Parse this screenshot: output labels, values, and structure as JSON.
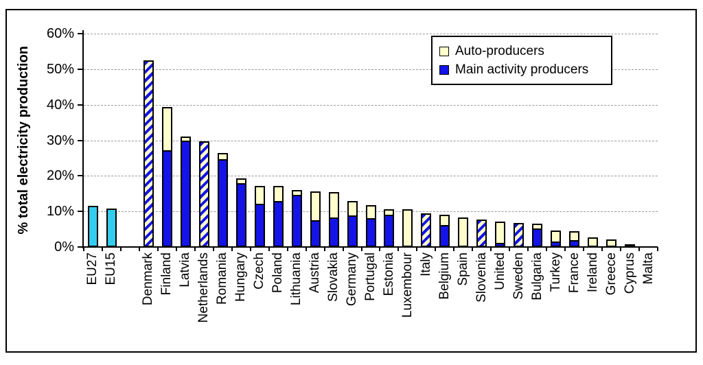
{
  "chart": {
    "ylabel": "% total electricity production",
    "legend": {
      "auto": {
        "label": "Auto-producers",
        "color": "#FFFFCC"
      },
      "main": {
        "label": "Main activity producers",
        "color": "#1414E8"
      }
    }
  },
  "chart_data": {
    "type": "bar",
    "stacked": true,
    "title": "",
    "xlabel": "",
    "ylabel": "% total electricity production",
    "ylim": [
      0,
      60
    ],
    "ytick_step": 10,
    "ytick_labels": [
      "0%",
      "10%",
      "20%",
      "30%",
      "40%",
      "50%",
      "60%"
    ],
    "grid": "horizontal-dashed",
    "legend_position": "top-right",
    "gap_after_index": 1,
    "colors": {
      "main": "#1414E8",
      "auto": "#FFFFCC",
      "aggregate": "#33CCEE",
      "hatch": "diagonal blue stripes on pale yellow"
    },
    "categories": [
      "EU27",
      "EU15",
      "Denmark",
      "Finland",
      "Latvia",
      "Netherlands",
      "Romania",
      "Hungary",
      "Czech",
      "Poland",
      "Lithuania",
      "Austria",
      "Slovakia",
      "Germany",
      "Portugal",
      "Estonia",
      "Luxembour",
      "Italy",
      "Belgium",
      "Spain",
      "Slovenia",
      "United",
      "Sweden",
      "Bulgaria",
      "Turkey",
      "France",
      "Ireland",
      "Greece",
      "Cyprus",
      "Malta"
    ],
    "bars": [
      {
        "label": "EU27",
        "style": "aggregate",
        "total": 11.2
      },
      {
        "label": "EU15",
        "style": "aggregate",
        "total": 10.4
      },
      {
        "label": "Denmark",
        "style": "hatched",
        "total": 52.0
      },
      {
        "label": "Finland",
        "style": "stacked",
        "main": 26.8,
        "auto": 12.2
      },
      {
        "label": "Latvia",
        "style": "stacked",
        "main": 29.5,
        "auto": 1.1
      },
      {
        "label": "Netherlands",
        "style": "hatched",
        "total": 29.3
      },
      {
        "label": "Romania",
        "style": "stacked",
        "main": 24.4,
        "auto": 1.6
      },
      {
        "label": "Hungary",
        "style": "stacked",
        "main": 17.6,
        "auto": 1.4
      },
      {
        "label": "Czech",
        "style": "stacked",
        "main": 11.7,
        "auto": 5.0
      },
      {
        "label": "Poland",
        "style": "stacked",
        "main": 12.6,
        "auto": 4.2
      },
      {
        "label": "Lithuania",
        "style": "stacked",
        "main": 14.3,
        "auto": 1.3
      },
      {
        "label": "Austria",
        "style": "stacked",
        "main": 7.1,
        "auto": 8.2
      },
      {
        "label": "Slovakia",
        "style": "stacked",
        "main": 8.0,
        "auto": 7.0
      },
      {
        "label": "Germany",
        "style": "stacked",
        "main": 8.4,
        "auto": 4.1
      },
      {
        "label": "Portugal",
        "style": "stacked",
        "main": 7.7,
        "auto": 3.7
      },
      {
        "label": "Estonia",
        "style": "stacked",
        "main": 8.7,
        "auto": 1.5
      },
      {
        "label": "Luxembour",
        "style": "stacked",
        "main": 0,
        "auto": 10.3
      },
      {
        "label": "Italy",
        "style": "hatched",
        "total": 9.0
      },
      {
        "label": "Belgium",
        "style": "stacked",
        "main": 5.8,
        "auto": 2.8
      },
      {
        "label": "Spain",
        "style": "stacked",
        "main": 0,
        "auto": 8.0
      },
      {
        "label": "Slovenia",
        "style": "hatched",
        "total": 7.3
      },
      {
        "label": "United",
        "style": "stacked",
        "main": 0.7,
        "auto": 6.1
      },
      {
        "label": "Sweden",
        "style": "hatched",
        "total": 6.4
      },
      {
        "label": "Bulgaria",
        "style": "stacked",
        "main": 4.9,
        "auto": 1.2
      },
      {
        "label": "Turkey",
        "style": "stacked",
        "main": 1.1,
        "auto": 3.2
      },
      {
        "label": "France",
        "style": "stacked",
        "main": 1.6,
        "auto": 2.4
      },
      {
        "label": "Ireland",
        "style": "stacked",
        "main": 0,
        "auto": 2.3
      },
      {
        "label": "Greece",
        "style": "stacked",
        "main": 0,
        "auto": 1.8
      },
      {
        "label": "Cyprus",
        "style": "stacked",
        "main": 0.4,
        "auto": 0
      },
      {
        "label": "Malta",
        "style": "stacked",
        "main": 0,
        "auto": 0
      }
    ]
  }
}
